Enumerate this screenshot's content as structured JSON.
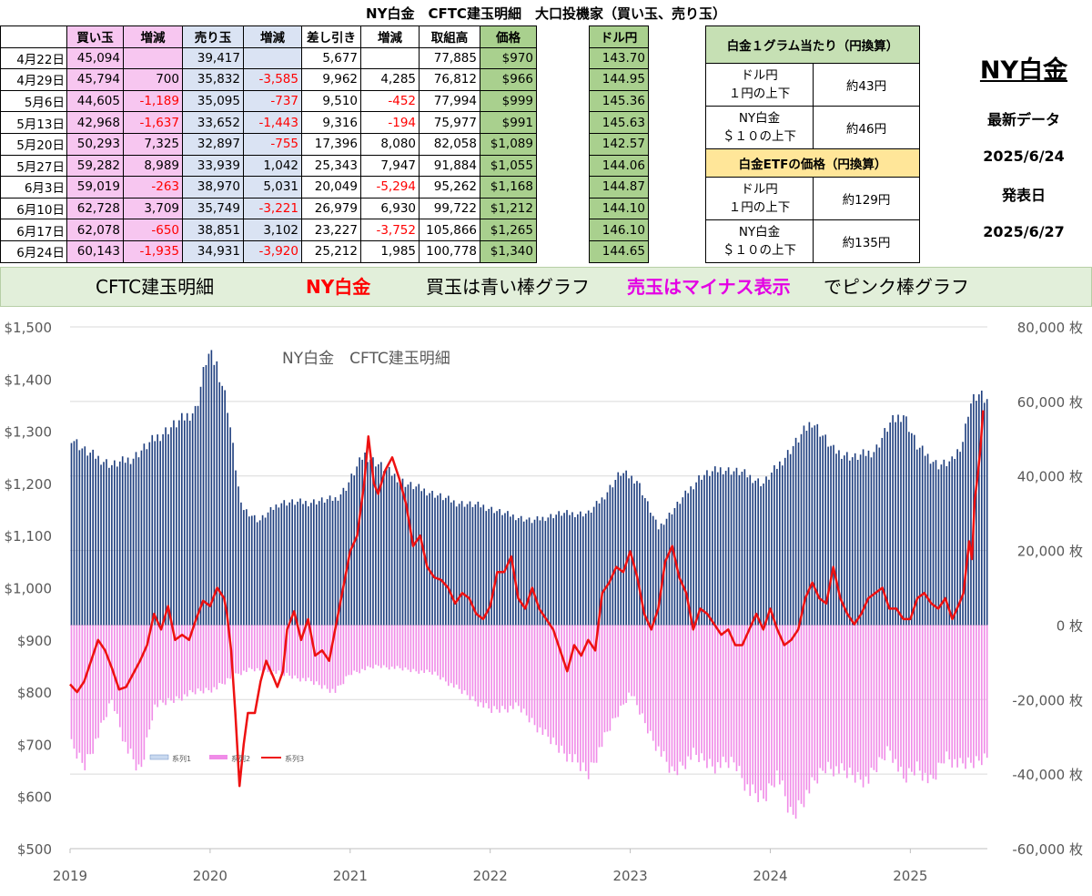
{
  "title": "NY白金　CFTC建玉明細　大口投機家（買い玉、売り玉）",
  "table": {
    "headers": [
      "",
      "買い玉",
      "増減",
      "売り玉",
      "増減",
      "差し引き",
      "増減",
      "取組高",
      "価格",
      "",
      "ドル円"
    ],
    "rows": [
      {
        "date": "4月22日",
        "buy": "45,094",
        "buy_chg": "",
        "sell": "39,417",
        "sell_chg": "",
        "net": "5,677",
        "net_chg": "",
        "oi": "77,885",
        "price": "$970",
        "fx": "143.70"
      },
      {
        "date": "4月29日",
        "buy": "45,794",
        "buy_chg": "700",
        "sell": "35,832",
        "sell_chg": "-3,585",
        "net": "9,962",
        "net_chg": "4,285",
        "oi": "76,812",
        "price": "$966",
        "fx": "144.95"
      },
      {
        "date": "5月6日",
        "buy": "44,605",
        "buy_chg": "-1,189",
        "sell": "35,095",
        "sell_chg": "-737",
        "net": "9,510",
        "net_chg": "-452",
        "oi": "77,994",
        "price": "$999",
        "fx": "145.36"
      },
      {
        "date": "5月13日",
        "buy": "42,968",
        "buy_chg": "-1,637",
        "sell": "33,652",
        "sell_chg": "-1,443",
        "net": "9,316",
        "net_chg": "-194",
        "oi": "75,977",
        "price": "$991",
        "fx": "145.63"
      },
      {
        "date": "5月20日",
        "buy": "50,293",
        "buy_chg": "7,325",
        "sell": "32,897",
        "sell_chg": "-755",
        "net": "17,396",
        "net_chg": "8,080",
        "oi": "82,058",
        "price": "$1,089",
        "fx": "142.57"
      },
      {
        "date": "5月27日",
        "buy": "59,282",
        "buy_chg": "8,989",
        "sell": "33,939",
        "sell_chg": "1,042",
        "net": "25,343",
        "net_chg": "7,947",
        "oi": "91,884",
        "price": "$1,055",
        "fx": "144.06"
      },
      {
        "date": "6月3日",
        "buy": "59,019",
        "buy_chg": "-263",
        "sell": "38,970",
        "sell_chg": "5,031",
        "net": "20,049",
        "net_chg": "-5,294",
        "oi": "95,262",
        "price": "$1,168",
        "fx": "144.87"
      },
      {
        "date": "6月10日",
        "buy": "62,728",
        "buy_chg": "3,709",
        "sell": "35,749",
        "sell_chg": "-3,221",
        "net": "26,979",
        "net_chg": "6,930",
        "oi": "99,722",
        "price": "$1,212",
        "fx": "144.10"
      },
      {
        "date": "6月17日",
        "buy": "62,078",
        "buy_chg": "-650",
        "sell": "38,851",
        "sell_chg": "3,102",
        "net": "23,227",
        "net_chg": "-3,752",
        "oi": "105,866",
        "price": "$1,265",
        "fx": "146.10"
      },
      {
        "date": "6月24日",
        "buy": "60,143",
        "buy_chg": "-1,935",
        "sell": "34,931",
        "sell_chg": "-3,920",
        "net": "25,212",
        "net_chg": "1,985",
        "oi": "100,778",
        "price": "$1,340",
        "fx": "144.65"
      }
    ]
  },
  "info_box": {
    "gram_title": "白金１グラム当たり（円換算）",
    "fx_label_1": "ドル円",
    "fx_label_2": "１円の上下",
    "fx_value": "約43円",
    "ny_label_1": "NY白金",
    "ny_label_2": "＄１０の上下",
    "ny_value": "約46円",
    "etf_title": "白金ETFの価格（円換算）",
    "etf_fx_label_1": "ドル円",
    "etf_fx_label_2": "１円の上下",
    "etf_fx_value": "約129円",
    "etf_ny_label_1": "NY白金",
    "etf_ny_label_2": "＄１０の上下",
    "etf_ny_value": "約135円"
  },
  "side_panel": {
    "title": "NY白金",
    "latest_label": "最新データ",
    "latest_date": "2025/6/24",
    "release_label": "発表日",
    "release_date": "2025/6/27"
  },
  "banner": {
    "part1": "CFTC建玉明細",
    "part2": "NY白金",
    "part3": "買玉は青い棒グラフ",
    "part4": "売玉はマイナス表示",
    "part5": "でピンク棒グラフ",
    "color_red": "#ff0000",
    "color_magenta": "#e400e4"
  },
  "chart_data": {
    "type": "bar+line",
    "title": "NY白金　CFTC建玉明細",
    "x_range": [
      2019.0,
      2025.55
    ],
    "x_ticks": [
      "2019",
      "2020",
      "2021",
      "2022",
      "2023",
      "2024",
      "2025"
    ],
    "y_left": {
      "range": [
        500,
        1500
      ],
      "ticks": [
        "$500",
        "$600",
        "$700",
        "$800",
        "$900",
        "$1,000",
        "$1,100",
        "$1,200",
        "$1,300",
        "$1,400",
        "$1,500"
      ]
    },
    "y_right": {
      "range": [
        -60000,
        80000
      ],
      "ticks": [
        "-60,000 枚",
        "-40,000 枚",
        "-20,000 枚",
        "0 枚",
        "20,000 枚",
        "40,000 枚",
        "60,000 枚",
        "80,000 枚"
      ]
    },
    "legend": [
      "系列1",
      "系列2",
      "系列3"
    ],
    "colors": {
      "buy": "#1f3f7f",
      "sell": "#f08ce8",
      "price": "#ee1111"
    },
    "buy_series_keypoints": [
      [
        2019.0,
        51000
      ],
      [
        2019.1,
        47000
      ],
      [
        2019.3,
        43000
      ],
      [
        2019.45,
        45000
      ],
      [
        2019.6,
        50000
      ],
      [
        2019.75,
        54000
      ],
      [
        2019.9,
        58000
      ],
      [
        2019.98,
        73000
      ],
      [
        2020.05,
        70000
      ],
      [
        2020.12,
        60000
      ],
      [
        2020.22,
        32000
      ],
      [
        2020.35,
        28000
      ],
      [
        2020.5,
        33000
      ],
      [
        2020.7,
        33000
      ],
      [
        2020.9,
        34000
      ],
      [
        2020.97,
        37000
      ],
      [
        2021.1,
        46000
      ],
      [
        2021.25,
        42000
      ],
      [
        2021.4,
        38000
      ],
      [
        2021.55,
        36000
      ],
      [
        2021.75,
        33000
      ],
      [
        2021.95,
        32000
      ],
      [
        2022.1,
        30000
      ],
      [
        2022.3,
        28000
      ],
      [
        2022.5,
        30000
      ],
      [
        2022.7,
        30000
      ],
      [
        2022.8,
        34000
      ],
      [
        2022.93,
        41000
      ],
      [
        2023.05,
        39000
      ],
      [
        2023.2,
        26000
      ],
      [
        2023.35,
        33000
      ],
      [
        2023.5,
        40000
      ],
      [
        2023.65,
        42000
      ],
      [
        2023.8,
        41000
      ],
      [
        2023.95,
        38000
      ],
      [
        2024.1,
        45000
      ],
      [
        2024.3,
        55000
      ],
      [
        2024.45,
        47000
      ],
      [
        2024.6,
        45000
      ],
      [
        2024.75,
        47000
      ],
      [
        2024.85,
        54000
      ],
      [
        2024.95,
        57000
      ],
      [
        2025.05,
        48000
      ],
      [
        2025.2,
        43000
      ],
      [
        2025.3,
        44000
      ],
      [
        2025.38,
        50000
      ],
      [
        2025.42,
        59000
      ],
      [
        2025.48,
        62000
      ],
      [
        2025.55,
        60000
      ]
    ],
    "sell_series_keypoints": [
      [
        2019.0,
        -32000
      ],
      [
        2019.1,
        -38000
      ],
      [
        2019.2,
        -30000
      ],
      [
        2019.3,
        -20000
      ],
      [
        2019.4,
        -33000
      ],
      [
        2019.5,
        -40000
      ],
      [
        2019.6,
        -22000
      ],
      [
        2019.75,
        -20000
      ],
      [
        2019.9,
        -18000
      ],
      [
        2020.05,
        -17000
      ],
      [
        2020.2,
        -13000
      ],
      [
        2020.3,
        -12000
      ],
      [
        2020.5,
        -13000
      ],
      [
        2020.7,
        -15000
      ],
      [
        2020.9,
        -18000
      ],
      [
        2021.0,
        -13000
      ],
      [
        2021.2,
        -11000
      ],
      [
        2021.4,
        -12000
      ],
      [
        2021.6,
        -13000
      ],
      [
        2021.8,
        -18000
      ],
      [
        2022.0,
        -23000
      ],
      [
        2022.2,
        -22000
      ],
      [
        2022.4,
        -30000
      ],
      [
        2022.55,
        -35000
      ],
      [
        2022.7,
        -40000
      ],
      [
        2022.85,
        -28000
      ],
      [
        2023.0,
        -18000
      ],
      [
        2023.15,
        -30000
      ],
      [
        2023.3,
        -40000
      ],
      [
        2023.45,
        -35000
      ],
      [
        2023.6,
        -38000
      ],
      [
        2023.75,
        -37000
      ],
      [
        2023.85,
        -45000
      ],
      [
        2023.95,
        -47000
      ],
      [
        2024.05,
        -40000
      ],
      [
        2024.15,
        -52000
      ],
      [
        2024.25,
        -46000
      ],
      [
        2024.4,
        -38000
      ],
      [
        2024.55,
        -40000
      ],
      [
        2024.7,
        -42000
      ],
      [
        2024.85,
        -33000
      ],
      [
        2024.95,
        -42000
      ],
      [
        2025.05,
        -38000
      ],
      [
        2025.15,
        -43000
      ],
      [
        2025.25,
        -35000
      ],
      [
        2025.35,
        -38000
      ],
      [
        2025.45,
        -37000
      ],
      [
        2025.55,
        -35000
      ]
    ],
    "price_series": [
      [
        2019.0,
        815
      ],
      [
        2019.05,
        800
      ],
      [
        2019.1,
        820
      ],
      [
        2019.15,
        860
      ],
      [
        2019.2,
        900
      ],
      [
        2019.25,
        880
      ],
      [
        2019.3,
        845
      ],
      [
        2019.35,
        805
      ],
      [
        2019.4,
        810
      ],
      [
        2019.45,
        835
      ],
      [
        2019.5,
        860
      ],
      [
        2019.55,
        890
      ],
      [
        2019.6,
        950
      ],
      [
        2019.65,
        920
      ],
      [
        2019.7,
        965
      ],
      [
        2019.75,
        900
      ],
      [
        2019.8,
        910
      ],
      [
        2019.85,
        900
      ],
      [
        2019.9,
        940
      ],
      [
        2019.95,
        975
      ],
      [
        2020.0,
        965
      ],
      [
        2020.05,
        1000
      ],
      [
        2020.1,
        980
      ],
      [
        2020.12,
        950
      ],
      [
        2020.15,
        880
      ],
      [
        2020.18,
        760
      ],
      [
        2020.21,
        620
      ],
      [
        2020.24,
        700
      ],
      [
        2020.27,
        760
      ],
      [
        2020.32,
        760
      ],
      [
        2020.36,
        820
      ],
      [
        2020.4,
        860
      ],
      [
        2020.45,
        830
      ],
      [
        2020.48,
        810
      ],
      [
        2020.52,
        840
      ],
      [
        2020.55,
        920
      ],
      [
        2020.6,
        955
      ],
      [
        2020.65,
        900
      ],
      [
        2020.7,
        940
      ],
      [
        2020.75,
        870
      ],
      [
        2020.8,
        880
      ],
      [
        2020.85,
        860
      ],
      [
        2020.9,
        930
      ],
      [
        2020.95,
        1000
      ],
      [
        2021.0,
        1070
      ],
      [
        2021.05,
        1100
      ],
      [
        2021.1,
        1200
      ],
      [
        2021.13,
        1290
      ],
      [
        2021.17,
        1200
      ],
      [
        2021.2,
        1180
      ],
      [
        2021.25,
        1225
      ],
      [
        2021.3,
        1250
      ],
      [
        2021.35,
        1210
      ],
      [
        2021.4,
        1160
      ],
      [
        2021.45,
        1080
      ],
      [
        2021.5,
        1100
      ],
      [
        2021.55,
        1040
      ],
      [
        2021.6,
        1020
      ],
      [
        2021.65,
        1015
      ],
      [
        2021.7,
        1000
      ],
      [
        2021.75,
        970
      ],
      [
        2021.8,
        990
      ],
      [
        2021.85,
        980
      ],
      [
        2021.9,
        950
      ],
      [
        2021.95,
        940
      ],
      [
        2022.0,
        965
      ],
      [
        2022.05,
        1030
      ],
      [
        2022.1,
        1030
      ],
      [
        2022.15,
        1060
      ],
      [
        2022.2,
        980
      ],
      [
        2022.25,
        960
      ],
      [
        2022.3,
        1000
      ],
      [
        2022.35,
        960
      ],
      [
        2022.4,
        940
      ],
      [
        2022.45,
        920
      ],
      [
        2022.5,
        880
      ],
      [
        2022.55,
        840
      ],
      [
        2022.6,
        890
      ],
      [
        2022.65,
        870
      ],
      [
        2022.7,
        900
      ],
      [
        2022.75,
        880
      ],
      [
        2022.8,
        990
      ],
      [
        2022.85,
        1010
      ],
      [
        2022.9,
        1040
      ],
      [
        2022.95,
        1030
      ],
      [
        2023.0,
        1070
      ],
      [
        2023.05,
        1020
      ],
      [
        2023.1,
        950
      ],
      [
        2023.15,
        920
      ],
      [
        2023.2,
        960
      ],
      [
        2023.25,
        1050
      ],
      [
        2023.3,
        1080
      ],
      [
        2023.35,
        1020
      ],
      [
        2023.4,
        990
      ],
      [
        2023.45,
        920
      ],
      [
        2023.5,
        960
      ],
      [
        2023.55,
        950
      ],
      [
        2023.6,
        930
      ],
      [
        2023.65,
        910
      ],
      [
        2023.7,
        920
      ],
      [
        2023.75,
        890
      ],
      [
        2023.8,
        890
      ],
      [
        2023.85,
        920
      ],
      [
        2023.9,
        950
      ],
      [
        2023.95,
        920
      ],
      [
        2024.0,
        960
      ],
      [
        2024.05,
        920
      ],
      [
        2024.1,
        890
      ],
      [
        2024.15,
        900
      ],
      [
        2024.2,
        920
      ],
      [
        2024.25,
        980
      ],
      [
        2024.3,
        1010
      ],
      [
        2024.35,
        980
      ],
      [
        2024.4,
        970
      ],
      [
        2024.45,
        1040
      ],
      [
        2024.5,
        980
      ],
      [
        2024.55,
        950
      ],
      [
        2024.6,
        930
      ],
      [
        2024.65,
        950
      ],
      [
        2024.7,
        980
      ],
      [
        2024.75,
        990
      ],
      [
        2024.8,
        1000
      ],
      [
        2024.85,
        960
      ],
      [
        2024.9,
        960
      ],
      [
        2024.95,
        940
      ],
      [
        2025.0,
        940
      ],
      [
        2025.05,
        980
      ],
      [
        2025.1,
        990
      ],
      [
        2025.15,
        970
      ],
      [
        2025.2,
        960
      ],
      [
        2025.25,
        980
      ],
      [
        2025.3,
        940
      ],
      [
        2025.35,
        970
      ],
      [
        2025.38,
        990
      ],
      [
        2025.42,
        1089
      ],
      [
        2025.44,
        1055
      ],
      [
        2025.46,
        1168
      ],
      [
        2025.48,
        1212
      ],
      [
        2025.5,
        1265
      ],
      [
        2025.52,
        1340
      ]
    ]
  }
}
